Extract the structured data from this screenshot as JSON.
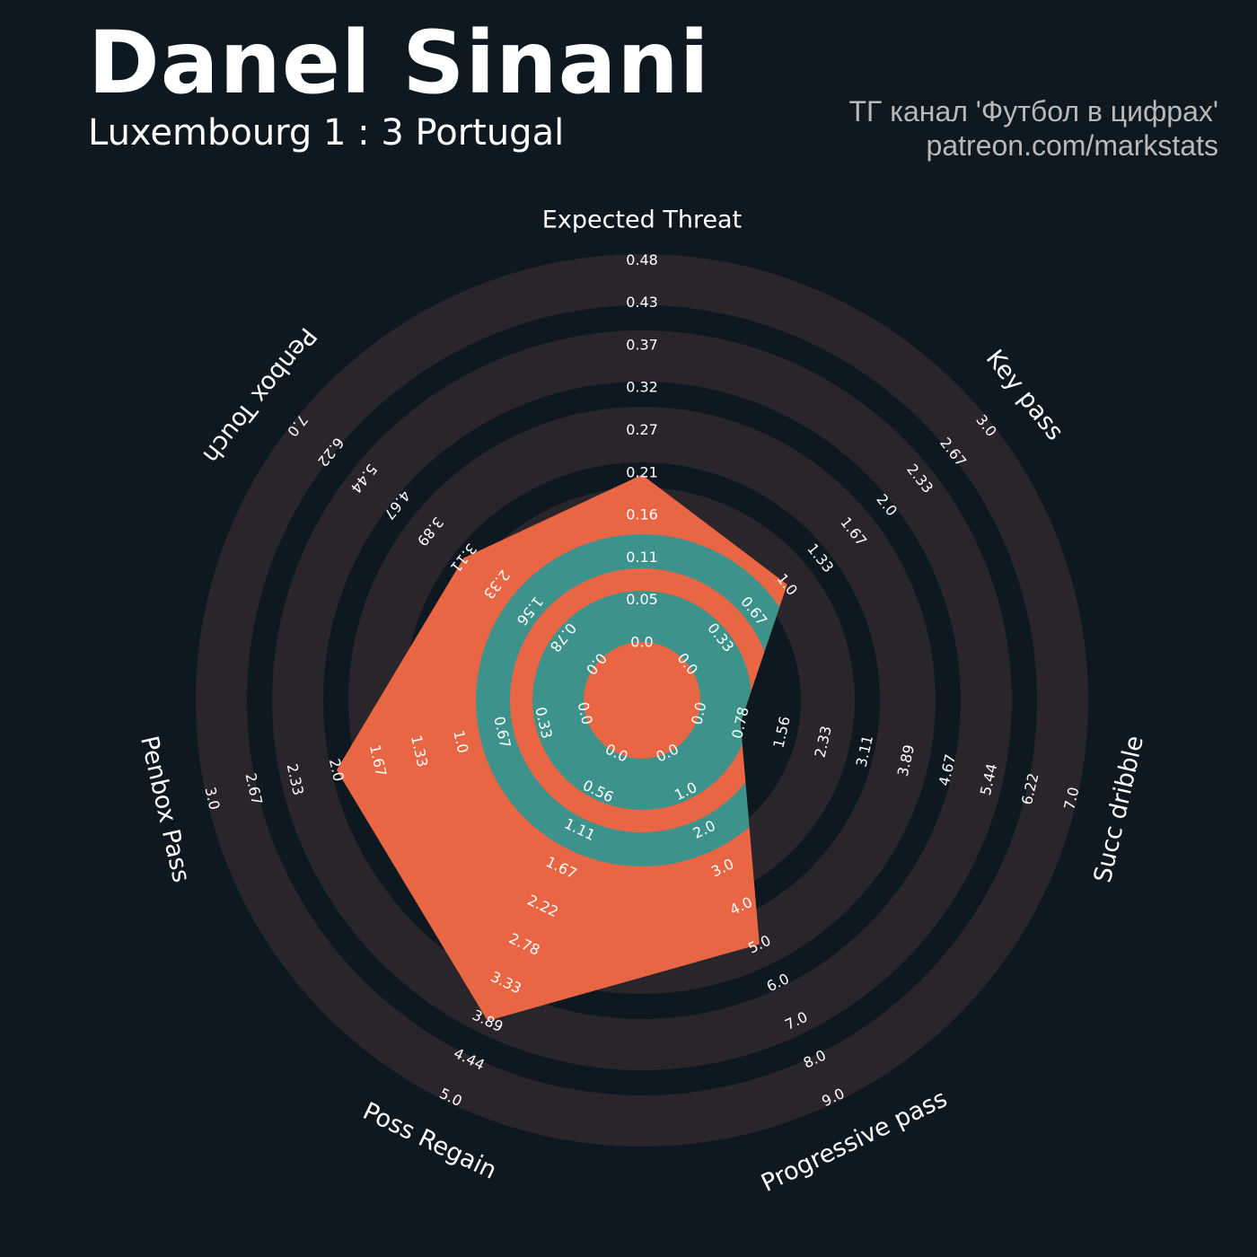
{
  "header": {
    "player_name": "Danel Sinani",
    "match": "Luxembourg 1 : 3 Portugal",
    "credit_line1": "ТГ канал 'Футбол в цифрах'",
    "credit_line2": "patreon.com/markstats"
  },
  "colors": {
    "background": "#0e1820",
    "ring": "#29252b",
    "accent_orange": "#e86644",
    "accent_teal": "#3d938c",
    "text": "#ffffff"
  },
  "chart_data": {
    "type": "radar",
    "title": "Danel Sinani",
    "subtitle": "Luxembourg 1 : 3 Portugal",
    "params": [
      {
        "name": "Expected Threat",
        "value": 0.21,
        "ticks": [
          "0.0",
          "0.05",
          "0.11",
          "0.16",
          "0.21",
          "0.27",
          "0.32",
          "0.37",
          "0.43",
          "0.48"
        ]
      },
      {
        "name": "Key pass",
        "value": 1.0,
        "ticks": [
          "0.0",
          "0.33",
          "0.67",
          "1.0",
          "1.33",
          "1.67",
          "2.0",
          "2.33",
          "2.67",
          "3.0"
        ]
      },
      {
        "name": "Succ dribble",
        "value": 0.78,
        "ticks": [
          "0.0",
          "0.78",
          "1.56",
          "2.33",
          "3.11",
          "3.89",
          "4.67",
          "5.44",
          "6.22",
          "7.0"
        ]
      },
      {
        "name": "Progressive pass",
        "value": 5.0,
        "ticks": [
          "0.0",
          "1.0",
          "2.0",
          "3.0",
          "4.0",
          "5.0",
          "6.0",
          "7.0",
          "8.0",
          "9.0"
        ]
      },
      {
        "name": "Poss Regain",
        "value": 3.89,
        "ticks": [
          "0.0",
          "0.56",
          "1.11",
          "1.67",
          "2.22",
          "2.78",
          "3.33",
          "3.89",
          "4.44",
          "5.0"
        ]
      },
      {
        "name": "Penbox Pass",
        "value": 2.0,
        "ticks": [
          "0.0",
          "0.33",
          "0.67",
          "1.0",
          "1.33",
          "1.67",
          "2.0",
          "2.33",
          "2.67",
          "3.0"
        ]
      },
      {
        "name": "Penbox Touch",
        "value": 3.11,
        "ticks": [
          "0.0",
          "0.78",
          "1.56",
          "2.33",
          "3.11",
          "3.89",
          "4.67",
          "5.44",
          "6.22",
          "7.0"
        ]
      }
    ]
  }
}
